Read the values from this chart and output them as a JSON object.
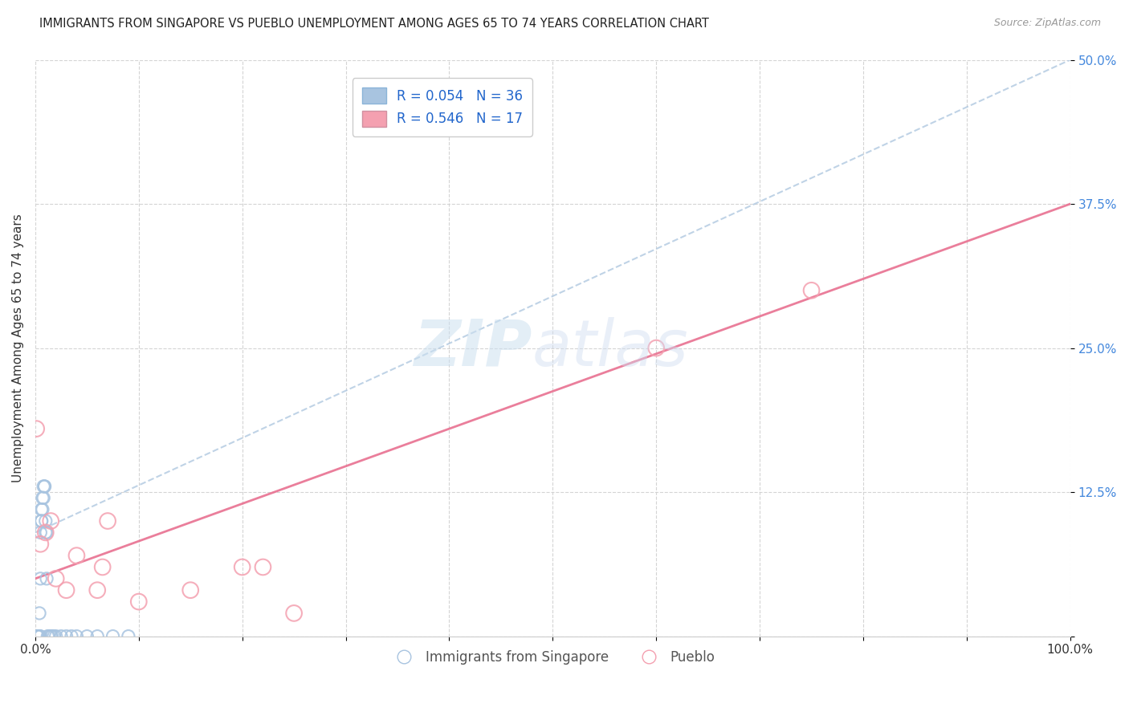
{
  "title": "IMMIGRANTS FROM SINGAPORE VS PUEBLO UNEMPLOYMENT AMONG AGES 65 TO 74 YEARS CORRELATION CHART",
  "source": "Source: ZipAtlas.com",
  "ylabel": "Unemployment Among Ages 65 to 74 years",
  "xlim": [
    0,
    1.0
  ],
  "ylim": [
    0,
    0.5
  ],
  "xticks": [
    0.0,
    0.1,
    0.2,
    0.3,
    0.4,
    0.5,
    0.6,
    0.7,
    0.8,
    0.9,
    1.0
  ],
  "yticks": [
    0.0,
    0.125,
    0.25,
    0.375,
    0.5
  ],
  "ytick_labels": [
    "",
    "12.5%",
    "25.0%",
    "37.5%",
    "50.0%"
  ],
  "xtick_labels": [
    "0.0%",
    "",
    "",
    "",
    "",
    "",
    "",
    "",
    "",
    "",
    "100.0%"
  ],
  "legend_r1": "R = 0.054",
  "legend_n1": "N = 36",
  "legend_r2": "R = 0.546",
  "legend_n2": "N = 17",
  "blue_color": "#a8c4e0",
  "pink_color": "#f4a0b0",
  "blue_line_color": "#b0c8e0",
  "pink_line_color": "#e87090",
  "blue_scatter_x": [
    0.002,
    0.003,
    0.003,
    0.004,
    0.004,
    0.004,
    0.005,
    0.005,
    0.005,
    0.006,
    0.006,
    0.006,
    0.007,
    0.007,
    0.008,
    0.008,
    0.009,
    0.009,
    0.01,
    0.01,
    0.011,
    0.011,
    0.012,
    0.013,
    0.015,
    0.016,
    0.018,
    0.02,
    0.025,
    0.03,
    0.035,
    0.04,
    0.05,
    0.06,
    0.075,
    0.09
  ],
  "blue_scatter_y": [
    0.0,
    0.0,
    0.0,
    0.0,
    0.0,
    0.02,
    0.0,
    0.05,
    0.09,
    0.1,
    0.1,
    0.11,
    0.11,
    0.12,
    0.12,
    0.13,
    0.13,
    0.13,
    0.09,
    0.1,
    0.05,
    0.09,
    0.0,
    0.0,
    0.0,
    0.0,
    0.0,
    0.0,
    0.0,
    0.0,
    0.0,
    0.0,
    0.0,
    0.0,
    0.0,
    0.0
  ],
  "pink_scatter_x": [
    0.001,
    0.005,
    0.01,
    0.015,
    0.02,
    0.03,
    0.04,
    0.06,
    0.065,
    0.07,
    0.1,
    0.15,
    0.2,
    0.22,
    0.25,
    0.6,
    0.75
  ],
  "pink_scatter_y": [
    0.18,
    0.08,
    0.09,
    0.1,
    0.05,
    0.04,
    0.07,
    0.04,
    0.06,
    0.1,
    0.03,
    0.04,
    0.06,
    0.06,
    0.02,
    0.25,
    0.3
  ],
  "blue_line_x": [
    0.0,
    1.0
  ],
  "blue_line_y": [
    0.09,
    0.5
  ],
  "pink_line_x": [
    0.0,
    1.0
  ],
  "pink_line_y": [
    0.05,
    0.375
  ],
  "bg_color": "#ffffff",
  "grid_color": "#d0d0d0",
  "legend_label_color": "#2266cc",
  "bottom_legend_color": "#555555"
}
